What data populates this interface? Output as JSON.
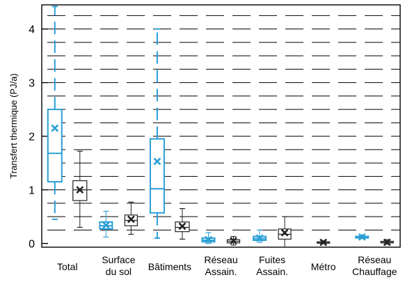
{
  "chart_data": {
    "type": "box",
    "ylabel": "Transfert thermique (PJ/a)",
    "ylim": [
      -0.07,
      4.45
    ],
    "yticks": [
      0,
      1,
      2,
      3,
      4
    ],
    "gridlines": [
      0.25,
      0.5,
      0.75,
      1.0,
      1.25,
      1.5,
      1.75,
      2.0,
      2.25,
      2.5,
      2.75,
      3.0,
      3.25,
      3.5,
      3.75,
      4.0,
      4.25
    ],
    "grid": "dashed-horizontal",
    "colors": {
      "blue": "#2a9fd6",
      "black": "#222222",
      "grid": "#000000"
    },
    "categories": [
      {
        "lines": [
          "Total"
        ]
      },
      {
        "lines": [
          "Surface",
          "du sol"
        ]
      },
      {
        "lines": [
          "Bâtiments"
        ]
      },
      {
        "lines": [
          "Réseau",
          "Assain."
        ]
      },
      {
        "lines": [
          "Fuites",
          "Assain."
        ]
      },
      {
        "lines": [
          "Métro"
        ]
      },
      {
        "lines": [
          "Réseau",
          "Chauffage"
        ]
      }
    ],
    "boxes": [
      {
        "category": 0,
        "color": "blue",
        "min": 0.45,
        "q1": 1.15,
        "median": 1.68,
        "q3": 2.5,
        "max": 4.42,
        "mean": 2.15,
        "dashed": true
      },
      {
        "category": 0,
        "color": "black",
        "min": 0.3,
        "q1": 0.8,
        "median": 1.0,
        "q3": 1.17,
        "max": 1.72,
        "mean": 1.0,
        "dashed": false
      },
      {
        "category": 1,
        "color": "blue",
        "min": 0.12,
        "q1": 0.27,
        "median": 0.33,
        "q3": 0.4,
        "max": 0.6,
        "mean": 0.34,
        "dashed": false
      },
      {
        "category": 1,
        "color": "black",
        "min": 0.17,
        "q1": 0.33,
        "median": 0.43,
        "q3": 0.53,
        "max": 0.77,
        "mean": 0.45,
        "dashed": false
      },
      {
        "category": 2,
        "color": "blue",
        "min": 0.1,
        "q1": 0.57,
        "median": 1.02,
        "q3": 1.95,
        "max": 4.0,
        "mean": 1.53,
        "dashed": true
      },
      {
        "category": 2,
        "color": "black",
        "min": 0.08,
        "q1": 0.22,
        "median": 0.3,
        "q3": 0.4,
        "max": 0.65,
        "mean": 0.32,
        "dashed": false
      },
      {
        "category": 3,
        "color": "blue",
        "min": 0.0,
        "q1": 0.03,
        "median": 0.06,
        "q3": 0.1,
        "max": 0.2,
        "mean": 0.07,
        "dashed": false
      },
      {
        "category": 3,
        "color": "black",
        "min": -0.03,
        "q1": 0.01,
        "median": 0.04,
        "q3": 0.07,
        "max": 0.13,
        "mean": 0.05,
        "dashed": false
      },
      {
        "category": 4,
        "color": "blue",
        "min": 0.02,
        "q1": 0.06,
        "median": 0.09,
        "q3": 0.13,
        "max": 0.25,
        "mean": 0.1,
        "dashed": false
      },
      {
        "category": 4,
        "color": "black",
        "min": -0.07,
        "q1": 0.08,
        "median": 0.17,
        "q3": 0.27,
        "max": 0.5,
        "mean": 0.2,
        "dashed": false
      },
      {
        "category": 5,
        "color": "black",
        "min": 0.0,
        "q1": 0.01,
        "median": 0.02,
        "q3": 0.03,
        "max": 0.05,
        "mean": 0.02,
        "dashed": false
      },
      {
        "category": 6,
        "color": "blue",
        "min": 0.09,
        "q1": 0.11,
        "median": 0.12,
        "q3": 0.13,
        "max": 0.16,
        "mean": 0.12,
        "dashed": false
      },
      {
        "category": 6,
        "color": "black",
        "min": -0.01,
        "q1": 0.01,
        "median": 0.02,
        "q3": 0.04,
        "max": 0.07,
        "mean": 0.02,
        "dashed": false
      }
    ]
  }
}
